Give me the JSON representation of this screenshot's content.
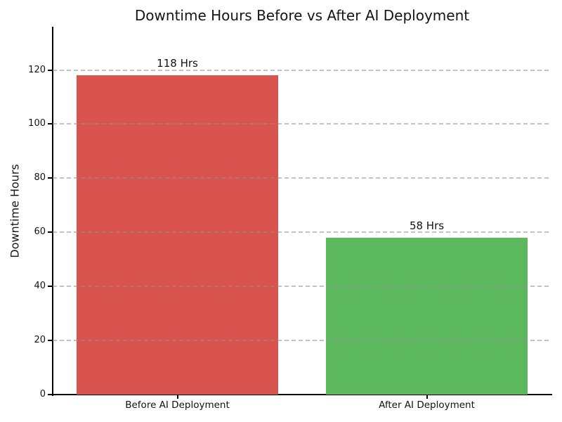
{
  "chart_data": {
    "type": "bar",
    "title": "Downtime Hours Before vs After AI Deployment",
    "xlabel": "",
    "ylabel": "Downtime Hours",
    "categories": [
      "Before AI Deployment",
      "After AI Deployment"
    ],
    "values": [
      118,
      58
    ],
    "bar_value_labels": [
      "118 Hrs",
      "58 Hrs"
    ],
    "bar_colors": [
      "#d9534f",
      "#5cb85c"
    ],
    "yticks": [
      0,
      20,
      40,
      60,
      80,
      100,
      120
    ],
    "ylim": [
      0,
      136
    ],
    "grid": "horizontal-dashed",
    "grid_color": "#c9c9c9",
    "legend": "none",
    "background_color": "#ffffff"
  }
}
